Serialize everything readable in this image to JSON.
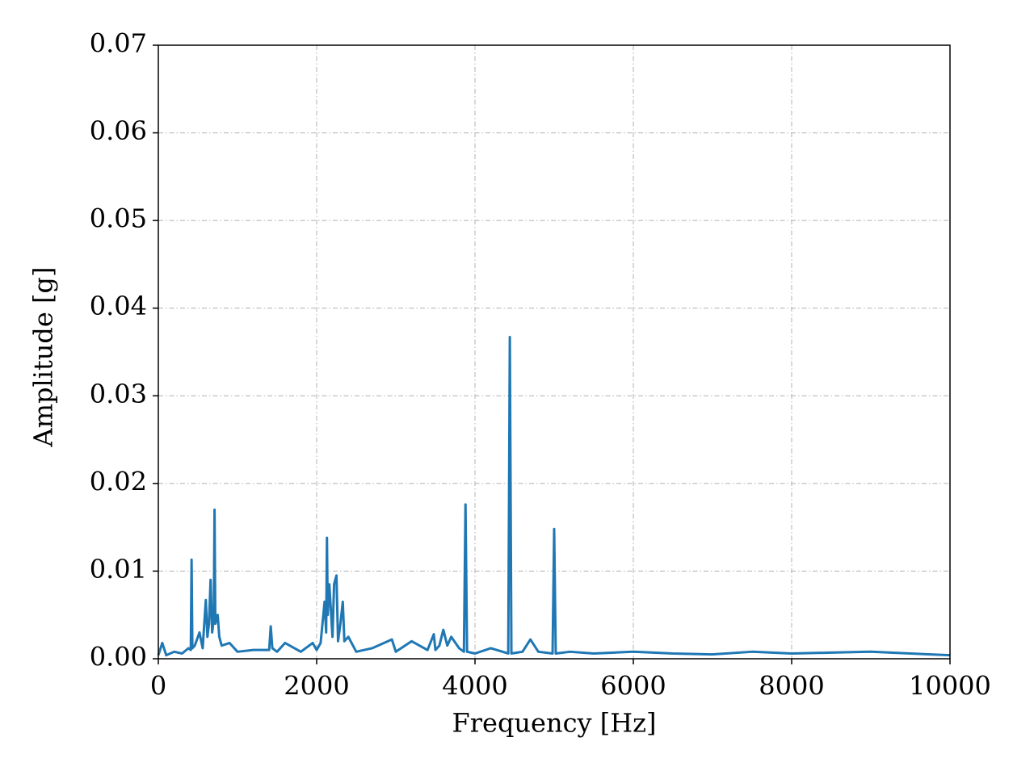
{
  "chart_data": {
    "type": "line",
    "x_label": "Frequency [Hz]",
    "y_label": "Amplitude [g]",
    "x": [
      0,
      50,
      100,
      200,
      300,
      380,
      410,
      420,
      430,
      460,
      520,
      560,
      600,
      620,
      640,
      660,
      680,
      700,
      710,
      720,
      750,
      770,
      800,
      900,
      1000,
      1200,
      1400,
      1420,
      1440,
      1500,
      1600,
      1800,
      1950,
      2000,
      2050,
      2100,
      2120,
      2130,
      2140,
      2160,
      2200,
      2220,
      2250,
      2270,
      2300,
      2330,
      2350,
      2400,
      2500,
      2700,
      2950,
      3000,
      3200,
      3400,
      3480,
      3500,
      3550,
      3600,
      3650,
      3700,
      3800,
      3860,
      3880,
      3900,
      4000,
      4200,
      4420,
      4440,
      4460,
      4600,
      4700,
      4800,
      4980,
      5000,
      5020,
      5200,
      5500,
      6000,
      6500,
      7000,
      7500,
      8000,
      8500,
      9000,
      9500,
      10000
    ],
    "values": [
      0.0004,
      0.0018,
      0.0004,
      0.0008,
      0.0006,
      0.0012,
      0.001,
      0.0113,
      0.0012,
      0.0015,
      0.003,
      0.0012,
      0.0067,
      0.0025,
      0.004,
      0.009,
      0.003,
      0.0045,
      0.017,
      0.004,
      0.005,
      0.0025,
      0.0015,
      0.0018,
      0.0008,
      0.001,
      0.001,
      0.0037,
      0.0012,
      0.0008,
      0.0018,
      0.0008,
      0.0018,
      0.001,
      0.0018,
      0.0065,
      0.003,
      0.0138,
      0.005,
      0.0085,
      0.0025,
      0.0085,
      0.0095,
      0.002,
      0.004,
      0.0065,
      0.002,
      0.0025,
      0.0008,
      0.0012,
      0.0022,
      0.0008,
      0.002,
      0.001,
      0.0028,
      0.001,
      0.0015,
      0.0033,
      0.0015,
      0.0025,
      0.0012,
      0.0008,
      0.0176,
      0.0008,
      0.0006,
      0.0012,
      0.0006,
      0.0367,
      0.0006,
      0.0008,
      0.0022,
      0.0008,
      0.0006,
      0.0148,
      0.0006,
      0.0008,
      0.0006,
      0.0008,
      0.0006,
      0.0005,
      0.0008,
      0.0006,
      0.0007,
      0.0008,
      0.0006,
      0.0004
    ],
    "color": "#1f77b4",
    "xlim": [
      0,
      10000
    ],
    "xticks": [
      0,
      2000,
      4000,
      6000,
      8000,
      10000
    ],
    "ylim": [
      0,
      0.07
    ],
    "yticks": [
      {
        "value": 0,
        "label": "0.00"
      },
      0.01,
      0.02,
      0.03,
      0.04,
      0.05,
      0.06,
      0.07
    ],
    "grid": true
  }
}
